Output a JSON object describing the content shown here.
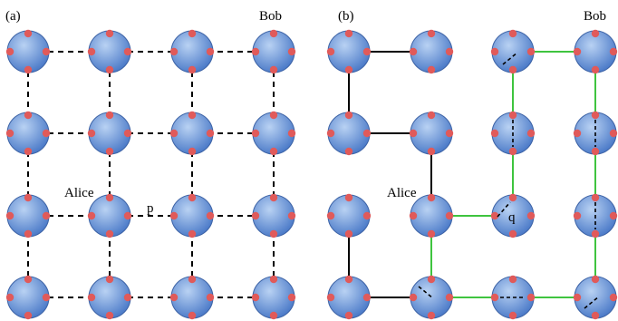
{
  "panels": [
    {
      "id": "a",
      "label": "(a)",
      "bob_label": "Bob",
      "alice_label": "Alice",
      "mark_label": "p"
    },
    {
      "id": "b",
      "label": "(b)",
      "bob_label": "Bob",
      "alice_label": "Alice",
      "mark_label": "q"
    }
  ],
  "colors": {
    "node_light": "#a9c6ee",
    "node_dark": "#4a78c8",
    "node_stroke": "#3d63a6",
    "port": "#e05a5a",
    "link_dashed": "#000000",
    "link_solid": "#000000",
    "path_green": "#3fc43f"
  }
}
